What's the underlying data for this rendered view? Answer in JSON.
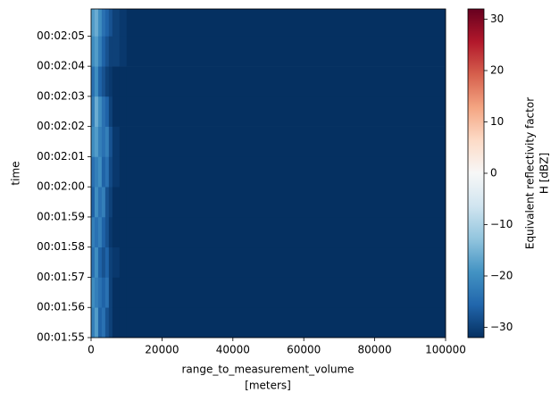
{
  "chart_data": {
    "type": "heatmap",
    "x_label": [
      "range_to_measurement_volume",
      "[meters]"
    ],
    "y_label": "time",
    "colorbar_label": [
      "Equivalent reflectivity factor",
      "H [dBZ]"
    ],
    "x_edges": [
      0,
      1000,
      2000,
      3000,
      4000,
      5000,
      6000,
      8000,
      10000,
      100000
    ],
    "y_edges": [
      115,
      116,
      117,
      118,
      119,
      120,
      121,
      122,
      123,
      124,
      125,
      125.9
    ],
    "values": [
      [
        -22,
        -18,
        -26,
        -24,
        -28,
        -30,
        -32,
        -32,
        -32
      ],
      [
        -20,
        -22,
        -24,
        -26,
        -24,
        -30,
        -32,
        -32,
        -32
      ],
      [
        -24,
        -20,
        -26,
        -28,
        -26,
        -30,
        -31,
        -32,
        -32
      ],
      [
        -22,
        -24,
        -22,
        -26,
        -28,
        -31,
        -32,
        -32,
        -32
      ],
      [
        -26,
        -20,
        -24,
        -22,
        -28,
        -30,
        -32,
        -32,
        -32
      ],
      [
        -24,
        -22,
        -20,
        -26,
        -24,
        -29,
        -31,
        -32,
        -32
      ],
      [
        -20,
        -18,
        -22,
        -24,
        -22,
        -28,
        -31,
        -32,
        -32
      ],
      [
        -22,
        -16,
        -20,
        -24,
        -26,
        -30,
        -32,
        -32,
        -32
      ],
      [
        -24,
        -20,
        -26,
        -28,
        -30,
        -31,
        -32,
        -32,
        -32
      ],
      [
        -20,
        -18,
        -22,
        -26,
        -28,
        -30,
        -30,
        -31,
        -32
      ],
      [
        -18,
        -16,
        -20,
        -24,
        -26,
        -28,
        -30,
        -31,
        -32
      ]
    ],
    "xlim": [
      0,
      100000
    ],
    "xticks": [
      0,
      20000,
      40000,
      60000,
      80000,
      100000
    ],
    "ylim": [
      115,
      125.9
    ],
    "yticks": [
      {
        "value": 115,
        "label": "00:01:55"
      },
      {
        "value": 116,
        "label": "00:01:56"
      },
      {
        "value": 117,
        "label": "00:01:57"
      },
      {
        "value": 118,
        "label": "00:01:58"
      },
      {
        "value": 119,
        "label": "00:01:59"
      },
      {
        "value": 120,
        "label": "00:02:00"
      },
      {
        "value": 121,
        "label": "00:02:01"
      },
      {
        "value": 122,
        "label": "00:02:02"
      },
      {
        "value": 123,
        "label": "00:02:03"
      },
      {
        "value": 124,
        "label": "00:02:04"
      },
      {
        "value": 125,
        "label": "00:02:05"
      }
    ],
    "clim": [
      -32,
      32
    ],
    "cticks": [
      {
        "value": -30,
        "label": "−30"
      },
      {
        "value": -20,
        "label": "−20"
      },
      {
        "value": -10,
        "label": "−10"
      },
      0,
      10,
      20,
      30
    ],
    "colormap_colors": [
      "#053061",
      "#2166ac",
      "#4393c3",
      "#92c5de",
      "#d1e5f0",
      "#f7f7f7",
      "#fddbc7",
      "#f4a582",
      "#d6604d",
      "#b2182b",
      "#67001f"
    ]
  }
}
